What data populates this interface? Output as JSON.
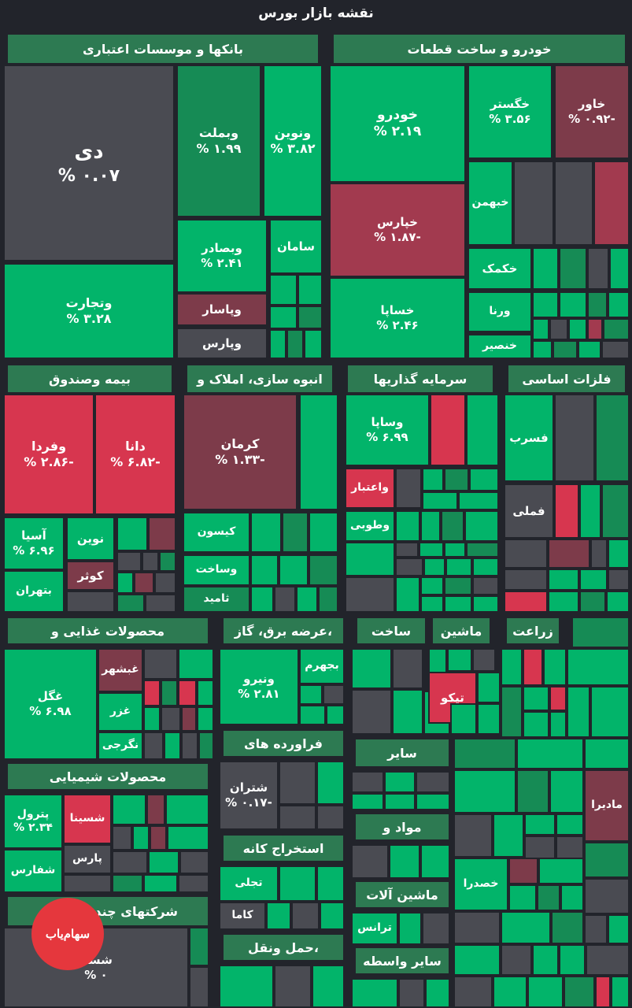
{
  "title": "نقشه بازار بورس",
  "colors": {
    "bg": "#22242b",
    "header": "#2d7a52",
    "green": "#02b46a",
    "gmid": "#168b55",
    "gdark": "#2e6a4c",
    "gray": "#4a4b52",
    "rdark": "#7d3b4a",
    "rmid": "#a23a4f",
    "red": "#d7364f"
  },
  "logo": {
    "text": "سهام‌یاب"
  },
  "headers": [
    "بانکها و موسسات اعتباری",
    "خودرو و ساخت قطعات",
    "بیمه وصندوق",
    "انبوه سازی، املاک و",
    "سرمایه گذاریها",
    "فلزات اساسی",
    "محصولات غذایی و",
    "عرضه برق، گاز،",
    "ساخت",
    "ماشین",
    "زراعت",
    "فراورده های",
    "محصولات شیمیایی",
    "استخراج کانه",
    "مواد و",
    "ماشین آلات",
    "شرکتهای چند رشته ای",
    "حمل ونقل،",
    "سایر",
    "سایر واسطه"
  ],
  "cells": [
    {
      "name": "دی",
      "pct": "% ۰.۰۷"
    },
    {
      "name": "وبملت",
      "pct": "% ۱.۹۹"
    },
    {
      "name": "ونوین",
      "pct": "% ۳.۸۲"
    },
    {
      "name": "وبصادر",
      "pct": "% ۲.۴۱"
    },
    {
      "name": "سامان",
      "pct": ""
    },
    {
      "name": "وتجارت",
      "pct": "% ۳.۲۸"
    },
    {
      "name": "وپاسار",
      "pct": ""
    },
    {
      "name": "وپارس",
      "pct": ""
    },
    {
      "name": "خودرو",
      "pct": "% ۲.۱۹"
    },
    {
      "name": "خگستر",
      "pct": "% ۳.۵۶"
    },
    {
      "name": "خاور",
      "pct": "% ۰.۹۲-"
    },
    {
      "name": "خپارس",
      "pct": "% ۱.۸۷-"
    },
    {
      "name": "خبهمن",
      "pct": ""
    },
    {
      "name": "خکمک",
      "pct": ""
    },
    {
      "name": "خساپا",
      "pct": "% ۲.۴۶"
    },
    {
      "name": "ورنا",
      "pct": ""
    },
    {
      "name": "خنصیر",
      "pct": ""
    },
    {
      "name": "وفردا",
      "pct": "% ۲.۸۶-"
    },
    {
      "name": "دانا",
      "pct": "% ۶.۸۲-"
    },
    {
      "name": "آسیا",
      "pct": "% ۶.۹۶"
    },
    {
      "name": "نوین",
      "pct": ""
    },
    {
      "name": "کوثر",
      "pct": ""
    },
    {
      "name": "بتهران",
      "pct": ""
    },
    {
      "name": "کرمان",
      "pct": "% ۱.۳۳-"
    },
    {
      "name": "کیسون",
      "pct": ""
    },
    {
      "name": "وساخت",
      "pct": ""
    },
    {
      "name": "ثامید",
      "pct": ""
    },
    {
      "name": "وساپا",
      "pct": "% ۶.۹۹"
    },
    {
      "name": "واعتبار",
      "pct": ""
    },
    {
      "name": "وطوبی",
      "pct": ""
    },
    {
      "name": "فسرب",
      "pct": ""
    },
    {
      "name": "فملی",
      "pct": ""
    },
    {
      "name": "غگل",
      "pct": "% ۶.۹۸"
    },
    {
      "name": "غبشهر",
      "pct": ""
    },
    {
      "name": "غزر",
      "pct": ""
    },
    {
      "name": "نگرجی",
      "pct": ""
    },
    {
      "name": "ونیرو",
      "pct": "% ۲.۸۱"
    },
    {
      "name": "بجهرم",
      "pct": ""
    },
    {
      "name": "تپکو",
      "pct": ""
    },
    {
      "name": "شتران",
      "pct": "% ۰.۱۷-"
    },
    {
      "name": "مادیرا",
      "pct": ""
    },
    {
      "name": "پترول",
      "pct": "% ۲.۳۴"
    },
    {
      "name": "شسینا",
      "pct": ""
    },
    {
      "name": "پارس",
      "pct": ""
    },
    {
      "name": "شفارس",
      "pct": ""
    },
    {
      "name": "تجلی",
      "pct": ""
    },
    {
      "name": "کاما",
      "pct": ""
    },
    {
      "name": "خصدرا",
      "pct": ""
    },
    {
      "name": "ترانس",
      "pct": ""
    },
    {
      "name": "شستا",
      "pct": "% ۰"
    }
  ]
}
